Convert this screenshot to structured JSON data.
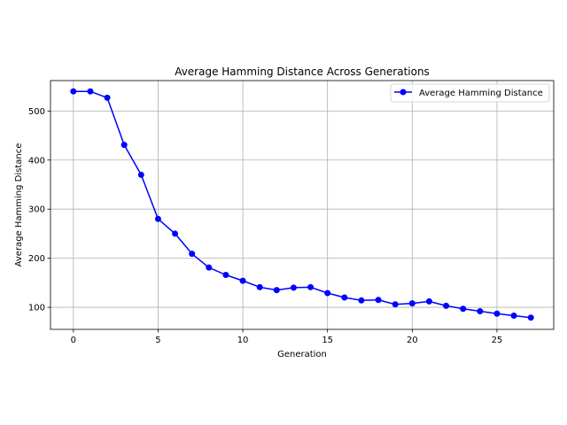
{
  "chart_data": {
    "type": "line",
    "title": "Average Hamming Distance Across Generations",
    "xlabel": "Generation",
    "ylabel": "Average Hamming Distance",
    "xlim": [
      -1.35,
      28.35
    ],
    "ylim": [
      55,
      562
    ],
    "xticks": [
      0,
      5,
      10,
      15,
      20,
      25
    ],
    "yticks": [
      100,
      200,
      300,
      400,
      500
    ],
    "grid": true,
    "legend_position": "top-right",
    "series": [
      {
        "name": "Average Hamming Distance",
        "color": "#0000ff",
        "marker": "circle",
        "x": [
          0,
          1,
          2,
          3,
          4,
          5,
          6,
          7,
          8,
          9,
          10,
          11,
          12,
          13,
          14,
          15,
          16,
          17,
          18,
          19,
          20,
          21,
          22,
          23,
          24,
          25,
          26,
          27
        ],
        "y": [
          540,
          540,
          527,
          431,
          370,
          280,
          250,
          209,
          181,
          166,
          154,
          141,
          135,
          140,
          141,
          129,
          120,
          114,
          115,
          106,
          108,
          112,
          103,
          97,
          92,
          87,
          83,
          79
        ]
      }
    ]
  }
}
